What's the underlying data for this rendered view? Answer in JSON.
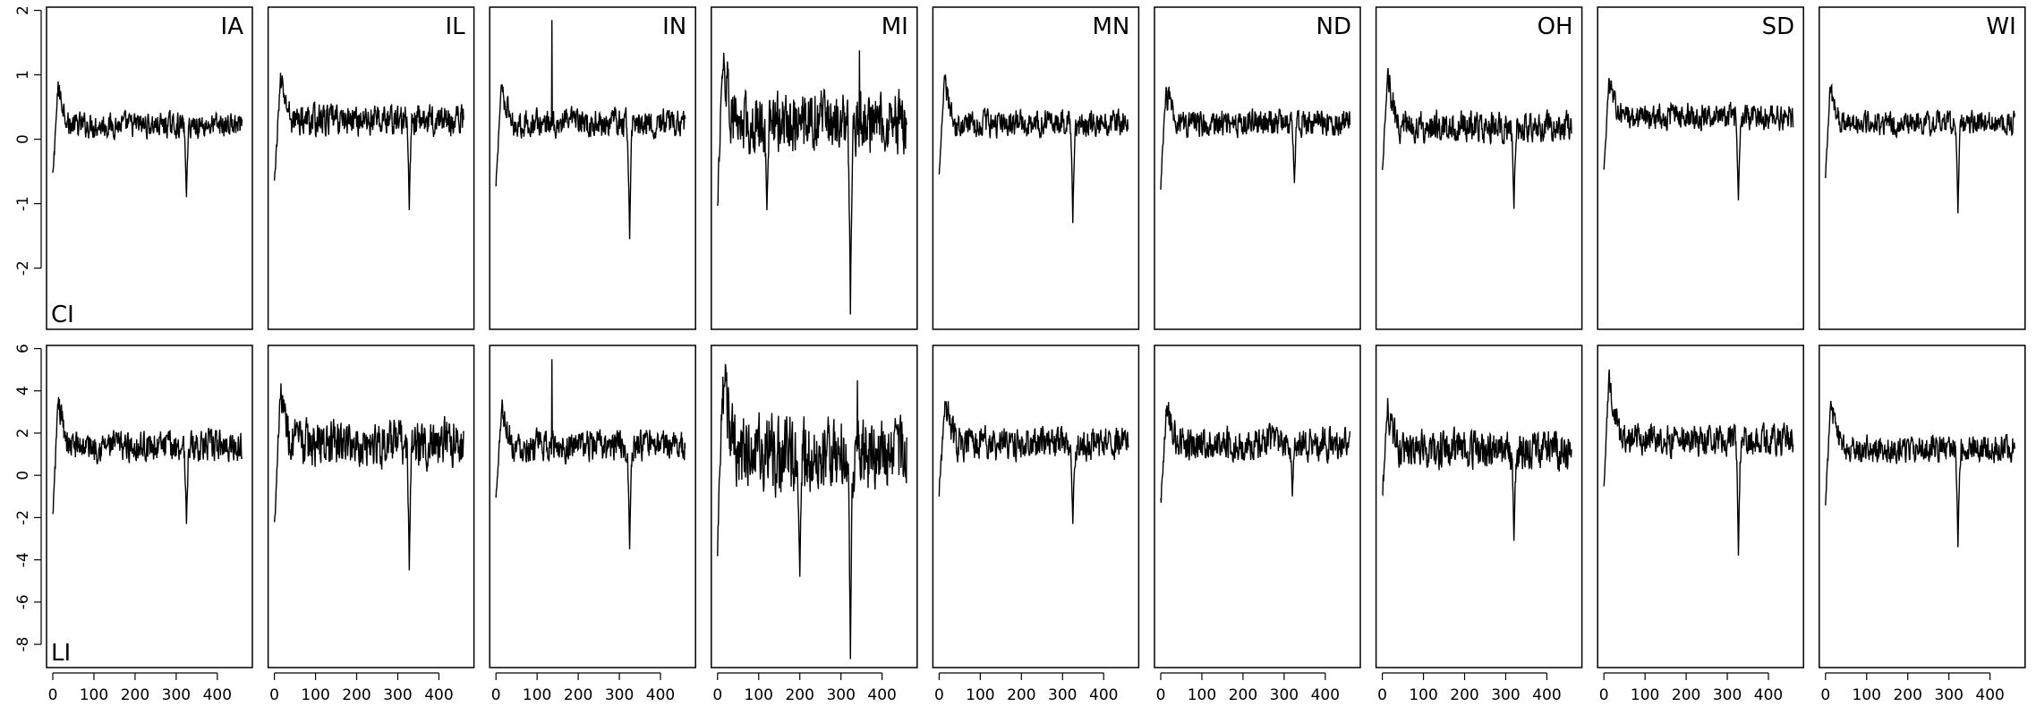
{
  "chart_data": {
    "type": "line",
    "layout": "2 rows x 9 columns of small-multiple line plots, shared axes per row",
    "columns": [
      "IA",
      "IL",
      "IN",
      "MI",
      "MN",
      "ND",
      "OH",
      "SD",
      "WI"
    ],
    "xlim": [
      0,
      470
    ],
    "x_ticks": [
      0,
      100,
      200,
      300,
      400
    ],
    "x_tick_labels": [
      "0",
      "100",
      "200",
      "300",
      "400"
    ],
    "x_length": 461,
    "grid": false,
    "rows": [
      {
        "label": "CI",
        "ylim": [
          -2.95,
          2.05
        ],
        "y_ticks": [
          -2,
          -1,
          0,
          1,
          2
        ],
        "y_tick_labels": [
          "-2",
          "-1",
          "0",
          "1",
          "2"
        ],
        "series": [
          {
            "panel": "IA",
            "baseline": 0.22,
            "noise": 0.16,
            "start": -0.6,
            "peak_x": 14,
            "peak": 0.98,
            "dips": [
              [
                325,
                -0.9
              ]
            ],
            "spikes": []
          },
          {
            "panel": "IL",
            "baseline": 0.3,
            "noise": 0.2,
            "start": -0.7,
            "peak_x": 16,
            "peak": 1.05,
            "dips": [
              [
                328,
                -1.1
              ]
            ],
            "spikes": []
          },
          {
            "panel": "IN",
            "baseline": 0.25,
            "noise": 0.18,
            "start": -0.75,
            "peak_x": 14,
            "peak": 1.02,
            "dips": [
              [
                325,
                -1.55
              ]
            ],
            "spikes": [
              [
                136,
                1.85
              ]
            ]
          },
          {
            "panel": "MI",
            "baseline": 0.25,
            "noise": 0.4,
            "start": -1.0,
            "peak_x": 14,
            "peak": 1.45,
            "dips": [
              [
                323,
                -2.72
              ],
              [
                120,
                -1.1
              ]
            ],
            "spikes": [
              [
                345,
                1.38
              ]
            ]
          },
          {
            "panel": "MN",
            "baseline": 0.25,
            "noise": 0.17,
            "start": -0.5,
            "peak_x": 14,
            "peak": 1.05,
            "dips": [
              [
                325,
                -1.3
              ]
            ],
            "spikes": []
          },
          {
            "panel": "ND",
            "baseline": 0.25,
            "noise": 0.18,
            "start": -0.7,
            "peak_x": 14,
            "peak": 0.9,
            "dips": [
              [
                325,
                -0.68
              ]
            ],
            "spikes": []
          },
          {
            "panel": "OH",
            "baseline": 0.2,
            "noise": 0.2,
            "start": -0.55,
            "peak_x": 14,
            "peak": 1.2,
            "dips": [
              [
                320,
                -1.08
              ]
            ],
            "spikes": []
          },
          {
            "panel": "SD",
            "baseline": 0.35,
            "noise": 0.17,
            "start": -0.5,
            "peak_x": 14,
            "peak": 1.1,
            "dips": [
              [
                327,
                -0.95
              ]
            ],
            "spikes": []
          },
          {
            "panel": "WI",
            "baseline": 0.25,
            "noise": 0.15,
            "start": -0.6,
            "peak_x": 12,
            "peak": 0.9,
            "dips": [
              [
                322,
                -1.15
              ]
            ],
            "spikes": []
          }
        ]
      },
      {
        "label": "LI",
        "ylim": [
          -9.1,
          6.15
        ],
        "y_ticks": [
          -8,
          -6,
          -4,
          -2,
          0,
          2,
          4,
          6
        ],
        "y_tick_labels": [
          "-8",
          "-6",
          "-4",
          "-2",
          "0",
          "2",
          "4",
          "6"
        ],
        "series": [
          {
            "panel": "IA",
            "baseline": 1.4,
            "noise": 0.6,
            "start": -2.0,
            "peak_x": 14,
            "peak": 4.0,
            "dips": [
              [
                325,
                -2.3
              ]
            ],
            "spikes": []
          },
          {
            "panel": "IL",
            "baseline": 1.5,
            "noise": 0.9,
            "start": -2.3,
            "peak_x": 16,
            "peak": 4.5,
            "dips": [
              [
                328,
                -4.5
              ]
            ],
            "spikes": []
          },
          {
            "panel": "IN",
            "baseline": 1.4,
            "noise": 0.6,
            "start": -1.0,
            "peak_x": 16,
            "peak": 3.7,
            "dips": [
              [
                325,
                -3.5
              ]
            ],
            "spikes": [
              [
                136,
                5.5
              ]
            ]
          },
          {
            "panel": "MI",
            "baseline": 1.0,
            "noise": 1.5,
            "start": -3.4,
            "peak_x": 14,
            "peak": 5.4,
            "dips": [
              [
                323,
                -8.7
              ],
              [
                200,
                -4.8
              ]
            ],
            "spikes": [
              [
                340,
                4.5
              ]
            ]
          },
          {
            "panel": "MN",
            "baseline": 1.5,
            "noise": 0.65,
            "start": -0.7,
            "peak_x": 16,
            "peak": 3.8,
            "dips": [
              [
                325,
                -2.3
              ]
            ],
            "spikes": []
          },
          {
            "panel": "ND",
            "baseline": 1.5,
            "noise": 0.65,
            "start": -1.3,
            "peak_x": 16,
            "peak": 3.8,
            "dips": [
              [
                320,
                -1.0
              ]
            ],
            "spikes": []
          },
          {
            "panel": "OH",
            "baseline": 1.2,
            "noise": 0.75,
            "start": -1.0,
            "peak_x": 14,
            "peak": 3.8,
            "dips": [
              [
                320,
                -3.1
              ]
            ],
            "spikes": []
          },
          {
            "panel": "SD",
            "baseline": 1.7,
            "noise": 0.6,
            "start": -0.5,
            "peak_x": 14,
            "peak": 5.4,
            "dips": [
              [
                327,
                -3.8
              ]
            ],
            "spikes": []
          },
          {
            "panel": "WI",
            "baseline": 1.3,
            "noise": 0.55,
            "start": -1.3,
            "peak_x": 14,
            "peak": 4.0,
            "dips": [
              [
                322,
                -3.4
              ]
            ],
            "spikes": []
          }
        ]
      }
    ]
  }
}
